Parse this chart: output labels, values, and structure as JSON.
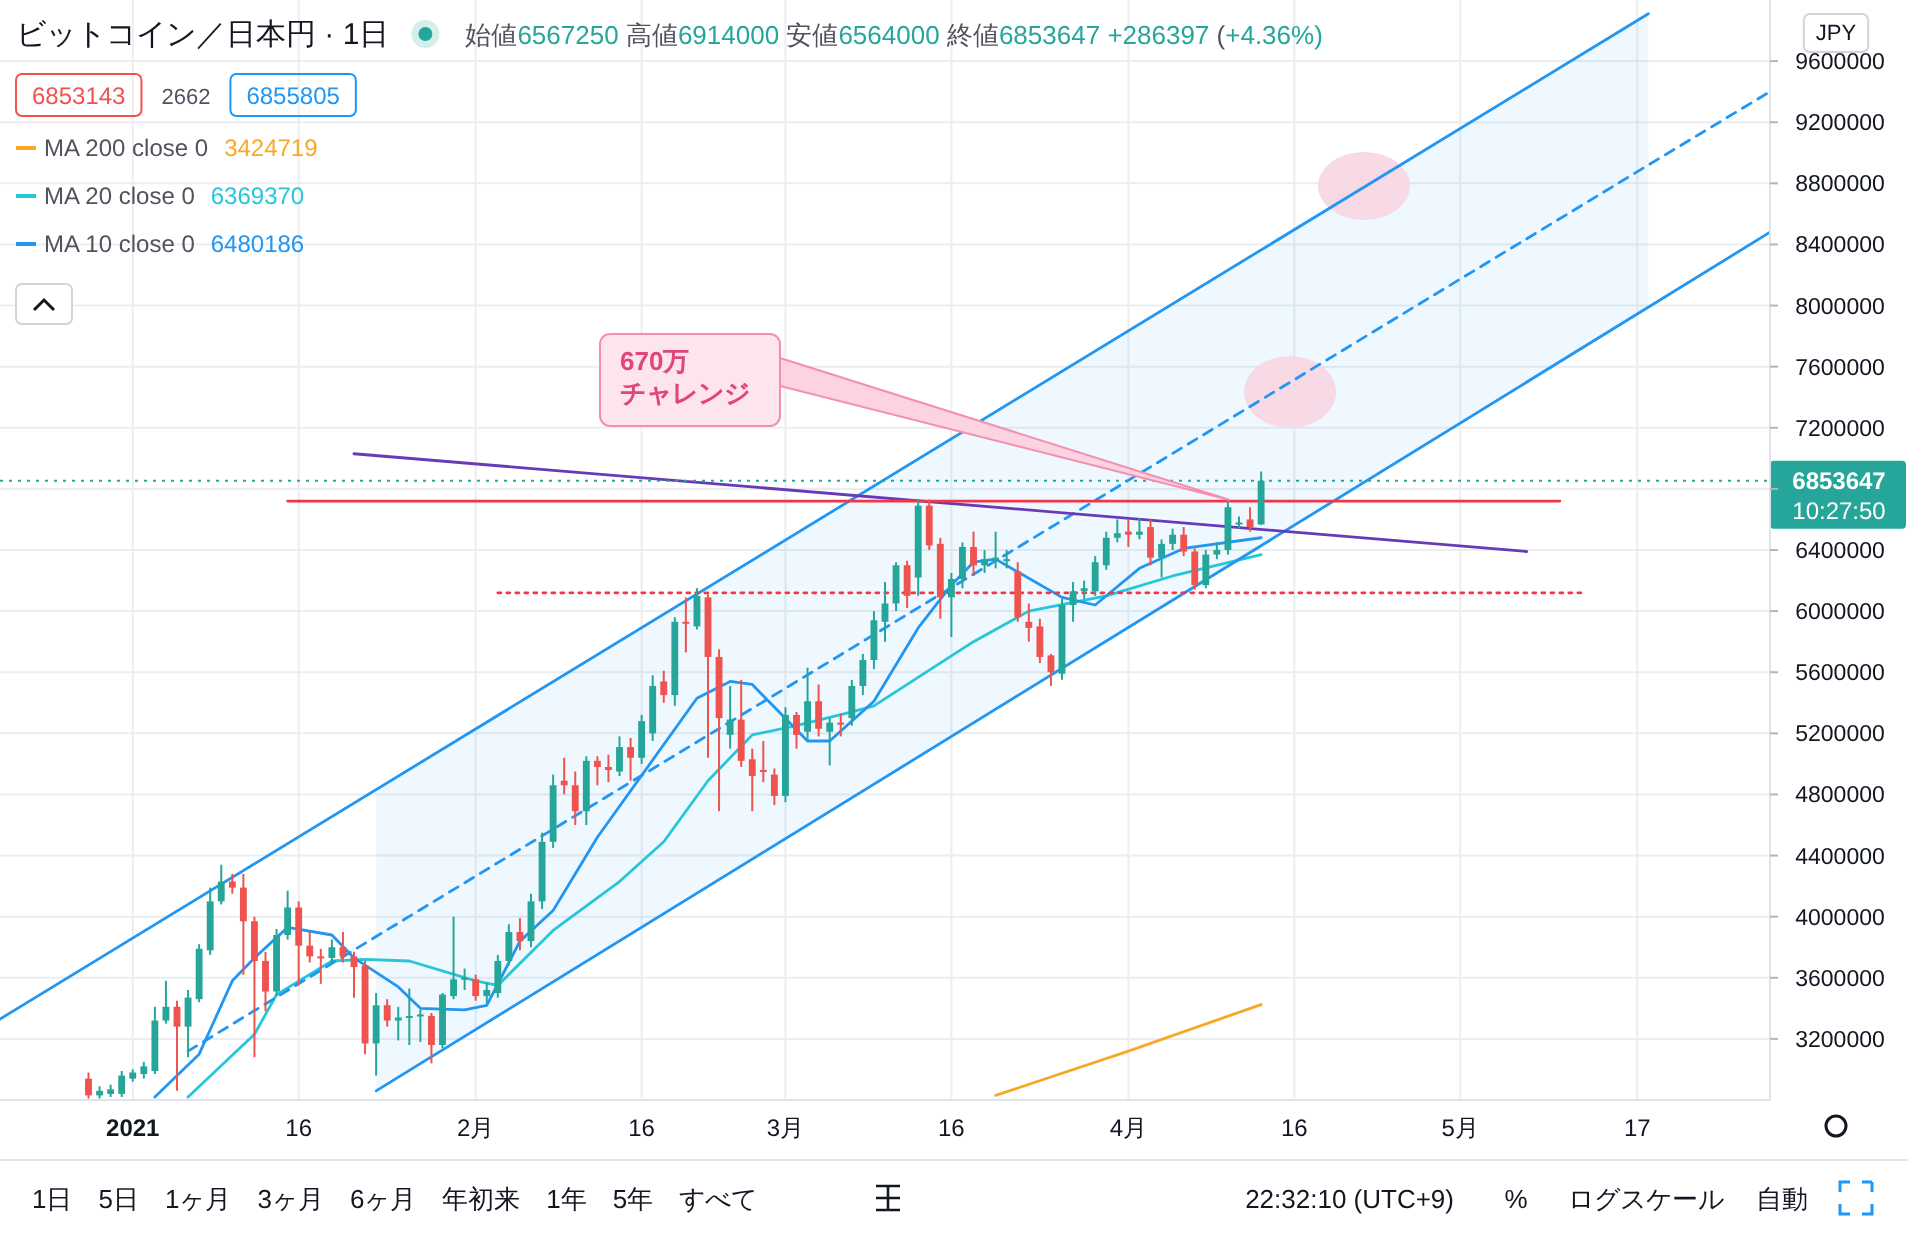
{
  "chart_data": {
    "type": "candlestick",
    "title": "ビットコイン／日本円 · 1日",
    "x": [
      "2020-12-28",
      "2020-12-29",
      "2020-12-30",
      "2020-12-31",
      "2021-01-01",
      "2021-01-02",
      "2021-01-03",
      "2021-01-04",
      "2021-01-05",
      "2021-01-06",
      "2021-01-07",
      "2021-01-08",
      "2021-01-09",
      "2021-01-10",
      "2021-01-11",
      "2021-01-12",
      "2021-01-13",
      "2021-01-14",
      "2021-01-15",
      "2021-01-16",
      "2021-01-17",
      "2021-01-18",
      "2021-01-19",
      "2021-01-20",
      "2021-01-21",
      "2021-01-22",
      "2021-01-23",
      "2021-01-24",
      "2021-01-25",
      "2021-01-26",
      "2021-01-27",
      "2021-01-28",
      "2021-01-29",
      "2021-01-30",
      "2021-01-31",
      "2021-02-01",
      "2021-02-02",
      "2021-02-03",
      "2021-02-04",
      "2021-02-05",
      "2021-02-06",
      "2021-02-07",
      "2021-02-08",
      "2021-02-09",
      "2021-02-10",
      "2021-02-11",
      "2021-02-12",
      "2021-02-13",
      "2021-02-14",
      "2021-02-15",
      "2021-02-16",
      "2021-02-17",
      "2021-02-18",
      "2021-02-19",
      "2021-02-20",
      "2021-02-21",
      "2021-02-22",
      "2021-02-23",
      "2021-02-24",
      "2021-02-25",
      "2021-02-26",
      "2021-02-27",
      "2021-02-28",
      "2021-03-01",
      "2021-03-02",
      "2021-03-03",
      "2021-03-04",
      "2021-03-05",
      "2021-03-06",
      "2021-03-07",
      "2021-03-08",
      "2021-03-09",
      "2021-03-10",
      "2021-03-11",
      "2021-03-12",
      "2021-03-13",
      "2021-03-14",
      "2021-03-15",
      "2021-03-16",
      "2021-03-17",
      "2021-03-18",
      "2021-03-19",
      "2021-03-20",
      "2021-03-21",
      "2021-03-22",
      "2021-03-23",
      "2021-03-24",
      "2021-03-25",
      "2021-03-26",
      "2021-03-27",
      "2021-03-28",
      "2021-03-29",
      "2021-03-30",
      "2021-03-31",
      "2021-04-01",
      "2021-04-02",
      "2021-04-03",
      "2021-04-04",
      "2021-04-05",
      "2021-04-06",
      "2021-04-07",
      "2021-04-08",
      "2021-04-09",
      "2021-04-10",
      "2021-04-11",
      "2021-04-12",
      "2021-04-13"
    ],
    "ohlc": [
      [
        2940000,
        2980000,
        2810000,
        2830000
      ],
      [
        2830000,
        2890000,
        2810000,
        2860000
      ],
      [
        2840000,
        2900000,
        2820000,
        2870000
      ],
      [
        2840000,
        2990000,
        2820000,
        2960000
      ],
      [
        2940000,
        3000000,
        2920000,
        2980000
      ],
      [
        2970000,
        3050000,
        2940000,
        3020000
      ],
      [
        2990000,
        3410000,
        2970000,
        3320000
      ],
      [
        3320000,
        3580000,
        3300000,
        3410000
      ],
      [
        3410000,
        3450000,
        2860000,
        3280000
      ],
      [
        3280000,
        3520000,
        3080000,
        3470000
      ],
      [
        3460000,
        3820000,
        3440000,
        3790000
      ],
      [
        3780000,
        4190000,
        3750000,
        4100000
      ],
      [
        4100000,
        4340000,
        4080000,
        4230000
      ],
      [
        4230000,
        4280000,
        4150000,
        4190000
      ],
      [
        4190000,
        4280000,
        3620000,
        3970000
      ],
      [
        3970000,
        4000000,
        3080000,
        3710000
      ],
      [
        3710000,
        3770000,
        3380000,
        3510000
      ],
      [
        3510000,
        3920000,
        3480000,
        3880000
      ],
      [
        3880000,
        4170000,
        3850000,
        4060000
      ],
      [
        4060000,
        4100000,
        3550000,
        3810000
      ],
      [
        3810000,
        3900000,
        3700000,
        3740000
      ],
      [
        3740000,
        3790000,
        3560000,
        3730000
      ],
      [
        3730000,
        3850000,
        3690000,
        3800000
      ],
      [
        3800000,
        3900000,
        3700000,
        3740000
      ],
      [
        3740000,
        3770000,
        3470000,
        3670000
      ],
      [
        3680000,
        3710000,
        3100000,
        3170000
      ],
      [
        3170000,
        3500000,
        2960000,
        3420000
      ],
      [
        3420000,
        3460000,
        3280000,
        3320000
      ],
      [
        3320000,
        3410000,
        3190000,
        3340000
      ],
      [
        3340000,
        3530000,
        3160000,
        3350000
      ],
      [
        3350000,
        3390000,
        3180000,
        3360000
      ],
      [
        3350000,
        3370000,
        3040000,
        3160000
      ],
      [
        3160000,
        3500000,
        3140000,
        3490000
      ],
      [
        3480000,
        4000000,
        3460000,
        3590000
      ],
      [
        3590000,
        3660000,
        3520000,
        3600000
      ],
      [
        3590000,
        3620000,
        3450000,
        3480000
      ],
      [
        3480000,
        3570000,
        3430000,
        3520000
      ],
      [
        3500000,
        3750000,
        3470000,
        3710000
      ],
      [
        3710000,
        3950000,
        3680000,
        3900000
      ],
      [
        3900000,
        3990000,
        3780000,
        3840000
      ],
      [
        3840000,
        4150000,
        3800000,
        4100000
      ],
      [
        4100000,
        4550000,
        4050000,
        4490000
      ],
      [
        4490000,
        4930000,
        4450000,
        4860000
      ],
      [
        4890000,
        5040000,
        4800000,
        4860000
      ],
      [
        4860000,
        4950000,
        4600000,
        4690000
      ],
      [
        4690000,
        5050000,
        4600000,
        5020000
      ],
      [
        5020000,
        5050000,
        4860000,
        4980000
      ],
      [
        4980000,
        5060000,
        4880000,
        4960000
      ],
      [
        4950000,
        5180000,
        4920000,
        5110000
      ],
      [
        5110000,
        5170000,
        4890000,
        5040000
      ],
      [
        5040000,
        5320000,
        5000000,
        5280000
      ],
      [
        5200000,
        5580000,
        5150000,
        5510000
      ],
      [
        5540000,
        5610000,
        5400000,
        5450000
      ],
      [
        5450000,
        5960000,
        5380000,
        5930000
      ],
      [
        5930000,
        6090000,
        5730000,
        5920000
      ],
      [
        5900000,
        6150000,
        5880000,
        6100000
      ],
      [
        6090000,
        6110000,
        5040000,
        5700000
      ],
      [
        5700000,
        5750000,
        4690000,
        5300000
      ],
      [
        5190000,
        5510000,
        5100000,
        5290000
      ],
      [
        5290000,
        5550000,
        4980000,
        5020000
      ],
      [
        5030000,
        5100000,
        4690000,
        4920000
      ],
      [
        4960000,
        5150000,
        4880000,
        4950000
      ],
      [
        4930000,
        4970000,
        4730000,
        4790000
      ],
      [
        4790000,
        5370000,
        4750000,
        5320000
      ],
      [
        5320000,
        5340000,
        5100000,
        5190000
      ],
      [
        5210000,
        5630000,
        5150000,
        5410000
      ],
      [
        5410000,
        5520000,
        5180000,
        5230000
      ],
      [
        5210000,
        5300000,
        4990000,
        5270000
      ],
      [
        5270000,
        5330000,
        5180000,
        5260000
      ],
      [
        5300000,
        5550000,
        5250000,
        5510000
      ],
      [
        5510000,
        5720000,
        5450000,
        5680000
      ],
      [
        5680000,
        6000000,
        5620000,
        5940000
      ],
      [
        5930000,
        6190000,
        5800000,
        6050000
      ],
      [
        6050000,
        6320000,
        6000000,
        6300000
      ],
      [
        6300000,
        6330000,
        6020000,
        6100000
      ],
      [
        6220000,
        6730000,
        6100000,
        6690000
      ],
      [
        6690000,
        6730000,
        6400000,
        6430000
      ],
      [
        6440000,
        6480000,
        5950000,
        6090000
      ],
      [
        6090000,
        6250000,
        5830000,
        6210000
      ],
      [
        6210000,
        6450000,
        6150000,
        6420000
      ],
      [
        6420000,
        6520000,
        6230000,
        6300000
      ],
      [
        6300000,
        6400000,
        6250000,
        6340000
      ],
      [
        6330000,
        6520000,
        6280000,
        6350000
      ],
      [
        6330000,
        6400000,
        6280000,
        6340000
      ],
      [
        6260000,
        6320000,
        5930000,
        5960000
      ],
      [
        5930000,
        6050000,
        5800000,
        5890000
      ],
      [
        5900000,
        5950000,
        5660000,
        5700000
      ],
      [
        5710000,
        5720000,
        5510000,
        5600000
      ],
      [
        5590000,
        6080000,
        5550000,
        6040000
      ],
      [
        6040000,
        6190000,
        5930000,
        6130000
      ],
      [
        6130000,
        6200000,
        6080000,
        6150000
      ],
      [
        6130000,
        6360000,
        6100000,
        6320000
      ],
      [
        6300000,
        6520000,
        6270000,
        6480000
      ],
      [
        6480000,
        6600000,
        6450000,
        6510000
      ],
      [
        6520000,
        6600000,
        6420000,
        6500000
      ],
      [
        6500000,
        6610000,
        6470000,
        6520000
      ],
      [
        6550000,
        6600000,
        6300000,
        6350000
      ],
      [
        6350000,
        6470000,
        6220000,
        6440000
      ],
      [
        6440000,
        6540000,
        6400000,
        6500000
      ],
      [
        6500000,
        6550000,
        6360000,
        6390000
      ],
      [
        6390000,
        6410000,
        6140000,
        6170000
      ],
      [
        6170000,
        6400000,
        6150000,
        6370000
      ],
      [
        6370000,
        6450000,
        6340000,
        6400000
      ],
      [
        6400000,
        6720000,
        6370000,
        6680000
      ],
      [
        6570000,
        6620000,
        6540000,
        6580000
      ],
      [
        6600000,
        6680000,
        6520000,
        6550000
      ],
      [
        6567250,
        6914000,
        6564000,
        6853647
      ]
    ],
    "colors": [
      "#ef5350",
      "#26a69a",
      "#26a69a",
      "#26a69a",
      "#26a69a",
      "#26a69a",
      "#26a69a",
      "#26a69a",
      "#ef5350",
      "#26a69a",
      "#26a69a",
      "#26a69a",
      "#26a69a",
      "#ef5350",
      "#ef5350",
      "#ef5350",
      "#ef5350",
      "#26a69a",
      "#26a69a",
      "#ef5350",
      "#ef5350",
      "#ef5350",
      "#26a69a",
      "#ef5350",
      "#ef5350",
      "#ef5350",
      "#26a69a",
      "#ef5350",
      "#26a69a",
      "#26a69a",
      "#26a69a",
      "#ef5350",
      "#26a69a",
      "#26a69a",
      "#26a69a",
      "#ef5350",
      "#26a69a",
      "#26a69a",
      "#26a69a",
      "#ef5350",
      "#26a69a",
      "#26a69a",
      "#26a69a",
      "#ef5350",
      "#ef5350",
      "#26a69a",
      "#ef5350",
      "#ef5350",
      "#26a69a",
      "#ef5350",
      "#26a69a",
      "#26a69a",
      "#ef5350",
      "#26a69a",
      "#ef5350",
      "#26a69a",
      "#ef5350",
      "#ef5350",
      "#26a69a",
      "#ef5350",
      "#ef5350",
      "#ef5350",
      "#ef5350",
      "#26a69a",
      "#ef5350",
      "#26a69a",
      "#ef5350",
      "#26a69a",
      "#ef5350",
      "#26a69a",
      "#26a69a",
      "#26a69a",
      "#26a69a",
      "#26a69a",
      "#ef5350",
      "#26a69a",
      "#ef5350",
      "#ef5350",
      "#26a69a",
      "#26a69a",
      "#ef5350",
      "#26a69a",
      "#26a69a",
      "#26a69a",
      "#ef5350",
      "#ef5350",
      "#ef5350",
      "#ef5350",
      "#26a69a",
      "#26a69a",
      "#26a69a",
      "#26a69a",
      "#26a69a",
      "#26a69a",
      "#ef5350",
      "#26a69a",
      "#ef5350",
      "#26a69a",
      "#26a69a",
      "#ef5350",
      "#ef5350",
      "#26a69a",
      "#26a69a",
      "#26a69a",
      "#26a69a",
      "#ef5350",
      "#26a69a"
    ],
    "series": [
      {
        "name": "MA 200 close 0",
        "type": "line",
        "color": "#f9a825",
        "x": [
          "2021-03-20",
          "2021-04-01",
          "2021-04-13"
        ],
        "values": [
          2830000,
          3120000,
          3424719
        ]
      },
      {
        "name": "MA 20 close 0",
        "type": "line",
        "color": "#26c6da",
        "x": [
          "2021-01-06",
          "2021-01-12",
          "2021-01-14",
          "2021-01-19",
          "2021-01-22",
          "2021-01-26",
          "2021-02-01",
          "2021-02-03",
          "2021-02-08",
          "2021-02-14",
          "2021-02-18",
          "2021-02-22",
          "2021-02-26",
          "2021-03-02",
          "2021-03-07",
          "2021-03-09",
          "2021-03-18",
          "2021-03-23",
          "2021-03-30",
          "2021-04-05",
          "2021-04-13"
        ],
        "values": [
          2820000,
          3230000,
          3490000,
          3710000,
          3720000,
          3710000,
          3580000,
          3550000,
          3910000,
          4230000,
          4490000,
          4890000,
          5190000,
          5250000,
          5340000,
          5380000,
          5800000,
          6000000,
          6100000,
          6230000,
          6369370
        ]
      },
      {
        "name": "MA 10 close 0",
        "type": "line",
        "color": "#2196f3",
        "x": [
          "2021-01-03",
          "2021-01-07",
          "2021-01-10",
          "2021-01-12",
          "2021-01-15",
          "2021-01-19",
          "2021-01-21",
          "2021-01-25",
          "2021-01-27",
          "2021-01-31",
          "2021-02-02",
          "2021-02-05",
          "2021-02-08",
          "2021-02-12",
          "2021-02-21",
          "2021-02-24",
          "2021-02-26",
          "2021-03-03",
          "2021-03-05",
          "2021-03-09",
          "2021-03-13",
          "2021-03-16",
          "2021-03-18",
          "2021-03-20",
          "2021-03-26",
          "2021-03-29",
          "2021-04-02",
          "2021-04-06",
          "2021-04-13"
        ],
        "values": [
          2820000,
          3100000,
          3580000,
          3730000,
          3930000,
          3880000,
          3730000,
          3540000,
          3400000,
          3390000,
          3420000,
          3840000,
          4040000,
          4520000,
          5430000,
          5540000,
          5520000,
          5150000,
          5150000,
          5410000,
          5890000,
          6170000,
          6320000,
          6340000,
          6090000,
          6040000,
          6280000,
          6410000,
          6480186
        ]
      },
      {
        "type": "line",
        "color": "#2196f3",
        "x": [
          "2020-12-20",
          "2021-05-18"
        ],
        "values": [
          3330000,
          9910000
        ]
      },
      {
        "type": "line",
        "color": "#2196f3",
        "line_style": "dashed",
        "x": [
          "2021-01-06",
          "2021-01-23",
          "2021-05-18",
          "2021-05-29"
        ],
        "values": [
          3120000,
          3870000,
          8920000,
          9400000
        ],
        "upper": [
          null,
          4830000,
          9910000,
          null
        ],
        "lower": [
          null,
          2860000,
          7990000,
          null
        ]
      },
      {
        "type": "line",
        "color": "#2196f3",
        "x": [
          "2021-01-23",
          "2021-05-29"
        ],
        "values": [
          2860000,
          8480000
        ]
      },
      {
        "type": "line",
        "color": "#673ab7",
        "x": [
          "2021-01-21",
          "2021-05-07"
        ],
        "values": [
          7030000,
          6390000
        ]
      },
      {
        "type": "line",
        "color": "#f23645",
        "x": [
          "2021-01-15",
          "2021-05-10"
        ],
        "values": [
          6720000,
          6720000
        ]
      },
      {
        "type": "line",
        "color": "#f23645",
        "line_style": "dotted",
        "x": [
          "2021-02-03",
          "2021-05-12"
        ],
        "values": [
          6120000,
          6120000
        ]
      }
    ],
    "ref_lines": [
      {
        "axis": "y",
        "value": 6853647,
        "label": "6853647",
        "color": "#26a69a",
        "line_style": "dotted"
      }
    ],
    "xlim": [
      "2020-12-20",
      "2021-05-29"
    ],
    "xticks": [
      {
        "value": "2021-01-01",
        "label": "2021"
      },
      {
        "value": "2021-01-16",
        "label": "16"
      },
      {
        "value": "2021-02-01",
        "label": "2月"
      },
      {
        "value": "2021-02-16",
        "label": "16"
      },
      {
        "value": "2021-03-01",
        "label": "3月"
      },
      {
        "value": "2021-03-16",
        "label": "16"
      },
      {
        "value": "2021-04-01",
        "label": "4月"
      },
      {
        "value": "2021-04-16",
        "label": "16"
      },
      {
        "value": "2021-05-01",
        "label": "5月"
      },
      {
        "value": "2021-05-17",
        "label": "17"
      }
    ],
    "ylim": [
      2800000,
      10000000
    ],
    "yticks": [
      3200000,
      3600000,
      4000000,
      4400000,
      4800000,
      5200000,
      5600000,
      6000000,
      6400000,
      {
        "value": 6800000,
        "label": null
      },
      7200000,
      7600000,
      8000000,
      8400000,
      8800000,
      9200000,
      9600000
    ],
    "grid": true,
    "legend": "top left",
    "annotations": [
      "始値6567250 高値6914000 安値6564000 終値6853647 +286397 (+4.36%)",
      "6853143",
      "2662",
      "6855805",
      "3424719",
      "6369370",
      "6480186",
      "670万",
      "チャレンジ",
      "JPY",
      "10:27:50",
      "1日",
      "5日",
      "1ヶ月",
      "3ヶ月",
      "6ヶ月",
      "年初来",
      "1年",
      "5年",
      "すべて",
      "22:32:10 (UTC+9)",
      "%",
      "ログスケール",
      "自動"
    ]
  }
}
